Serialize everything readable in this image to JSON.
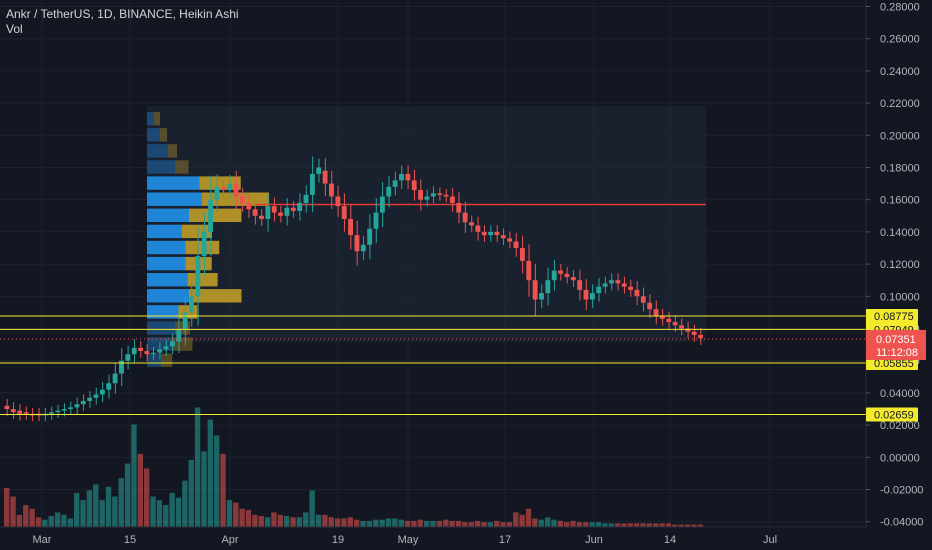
{
  "header": {
    "symbol_line": "Ankr / TetherUS, 1D, BINANCE, Heikin Ashi",
    "volume_label": "Vol"
  },
  "colors": {
    "background": "#131722",
    "grid": "#1e222d",
    "up": "#26a69a",
    "down": "#ef5350",
    "horizontal_line": "#f5eb2e",
    "resistance_line": "#e53935",
    "profile_blue": "#2196f3",
    "profile_yellow": "#c9a227",
    "price_badge": "#ef5350"
  },
  "chart_data": {
    "type": "candlestick",
    "title": "Ankr / TetherUS, 1D, BINANCE, Heikin Ashi",
    "y_axis": {
      "range": [
        -0.045,
        0.28
      ],
      "ticks": [
        "0.28000",
        "0.26000",
        "0.24000",
        "0.22000",
        "0.20000",
        "0.18000",
        "0.16000",
        "0.14000",
        "0.12000",
        "0.10000",
        "0.08000",
        "0.06000",
        "0.04000",
        "0.02000",
        "0.00000",
        "-0.02000",
        "-0.04000"
      ]
    },
    "x_axis": {
      "labels": [
        "Mar",
        "15",
        "Apr",
        "19",
        "May",
        "17",
        "Jun",
        "14",
        "Jul"
      ]
    },
    "candles": [
      [
        0.032,
        0.03
      ],
      [
        0.03,
        0.028
      ],
      [
        0.029,
        0.027
      ],
      [
        0.028,
        0.027
      ],
      [
        0.027,
        0.026
      ],
      [
        0.027,
        0.026
      ],
      [
        0.026,
        0.027
      ],
      [
        0.027,
        0.028
      ],
      [
        0.028,
        0.029
      ],
      [
        0.029,
        0.03
      ],
      [
        0.03,
        0.031
      ],
      [
        0.031,
        0.033
      ],
      [
        0.033,
        0.035
      ],
      [
        0.035,
        0.037
      ],
      [
        0.037,
        0.039
      ],
      [
        0.039,
        0.042
      ],
      [
        0.042,
        0.046
      ],
      [
        0.046,
        0.052
      ],
      [
        0.052,
        0.06
      ],
      [
        0.06,
        0.064
      ],
      [
        0.064,
        0.068
      ],
      [
        0.068,
        0.066
      ],
      [
        0.066,
        0.064
      ],
      [
        0.064,
        0.065
      ],
      [
        0.065,
        0.067
      ],
      [
        0.067,
        0.069
      ],
      [
        0.069,
        0.072
      ],
      [
        0.072,
        0.079
      ],
      [
        0.079,
        0.09
      ],
      [
        0.09,
        0.1
      ],
      [
        0.1,
        0.125
      ],
      [
        0.125,
        0.14
      ],
      [
        0.14,
        0.16
      ],
      [
        0.16,
        0.168
      ],
      [
        0.168,
        0.166
      ],
      [
        0.166,
        0.17
      ],
      [
        0.17,
        0.162
      ],
      [
        0.162,
        0.158
      ],
      [
        0.158,
        0.154
      ],
      [
        0.154,
        0.15
      ],
      [
        0.15,
        0.148
      ],
      [
        0.148,
        0.156
      ],
      [
        0.156,
        0.152
      ],
      [
        0.152,
        0.15
      ],
      [
        0.15,
        0.155
      ],
      [
        0.155,
        0.153
      ],
      [
        0.153,
        0.158
      ],
      [
        0.158,
        0.163
      ],
      [
        0.163,
        0.176
      ],
      [
        0.176,
        0.18
      ],
      [
        0.178,
        0.17
      ],
      [
        0.17,
        0.162
      ],
      [
        0.162,
        0.156
      ],
      [
        0.156,
        0.148
      ],
      [
        0.148,
        0.138
      ],
      [
        0.138,
        0.128
      ],
      [
        0.128,
        0.132
      ],
      [
        0.132,
        0.142
      ],
      [
        0.142,
        0.152
      ],
      [
        0.152,
        0.162
      ],
      [
        0.162,
        0.168
      ],
      [
        0.168,
        0.172
      ],
      [
        0.172,
        0.176
      ],
      [
        0.176,
        0.172
      ],
      [
        0.172,
        0.166
      ],
      [
        0.166,
        0.16
      ],
      [
        0.16,
        0.162
      ],
      [
        0.162,
        0.164
      ],
      [
        0.164,
        0.163
      ],
      [
        0.163,
        0.162
      ],
      [
        0.162,
        0.158
      ],
      [
        0.158,
        0.152
      ],
      [
        0.152,
        0.146
      ],
      [
        0.146,
        0.144
      ],
      [
        0.144,
        0.14
      ],
      [
        0.14,
        0.138
      ],
      [
        0.138,
        0.14
      ],
      [
        0.14,
        0.138
      ],
      [
        0.138,
        0.136
      ],
      [
        0.136,
        0.134
      ],
      [
        0.134,
        0.13
      ],
      [
        0.13,
        0.122
      ],
      [
        0.122,
        0.11
      ],
      [
        0.11,
        0.098
      ],
      [
        0.098,
        0.102
      ],
      [
        0.102,
        0.11
      ],
      [
        0.11,
        0.116
      ],
      [
        0.116,
        0.114
      ],
      [
        0.114,
        0.112
      ],
      [
        0.112,
        0.11
      ],
      [
        0.11,
        0.104
      ],
      [
        0.104,
        0.098
      ],
      [
        0.098,
        0.102
      ],
      [
        0.102,
        0.106
      ],
      [
        0.106,
        0.108
      ],
      [
        0.108,
        0.11
      ],
      [
        0.11,
        0.108
      ],
      [
        0.108,
        0.106
      ],
      [
        0.106,
        0.104
      ],
      [
        0.104,
        0.1
      ],
      [
        0.1,
        0.096
      ],
      [
        0.096,
        0.092
      ],
      [
        0.092,
        0.088
      ],
      [
        0.088,
        0.086
      ],
      [
        0.086,
        0.084
      ],
      [
        0.084,
        0.082
      ],
      [
        0.082,
        0.08
      ],
      [
        0.08,
        0.078
      ],
      [
        0.078,
        0.076
      ],
      [
        0.076,
        0.074
      ]
    ],
    "volume": [
      0.32,
      0.25,
      0.1,
      0.18,
      0.15,
      0.08,
      0.06,
      0.09,
      0.12,
      0.1,
      0.07,
      0.28,
      0.22,
      0.3,
      0.35,
      0.22,
      0.33,
      0.25,
      0.4,
      0.52,
      0.84,
      0.6,
      0.48,
      0.25,
      0.22,
      0.18,
      0.28,
      0.24,
      0.38,
      0.55,
      0.98,
      0.62,
      0.88,
      0.75,
      0.6,
      0.22,
      0.2,
      0.15,
      0.14,
      0.1,
      0.09,
      0.08,
      0.12,
      0.1,
      0.09,
      0.08,
      0.08,
      0.12,
      0.3,
      0.1,
      0.1,
      0.08,
      0.07,
      0.07,
      0.08,
      0.06,
      0.05,
      0.05,
      0.06,
      0.06,
      0.07,
      0.07,
      0.06,
      0.05,
      0.05,
      0.06,
      0.05,
      0.05,
      0.05,
      0.06,
      0.05,
      0.05,
      0.04,
      0.04,
      0.05,
      0.04,
      0.04,
      0.05,
      0.04,
      0.04,
      0.12,
      0.1,
      0.15,
      0.07,
      0.06,
      0.08,
      0.06,
      0.05,
      0.04,
      0.05,
      0.04,
      0.04,
      0.04,
      0.04,
      0.03,
      0.03,
      0.03,
      0.03,
      0.03,
      0.03,
      0.03,
      0.03,
      0.03,
      0.03,
      0.03,
      0.02,
      0.02,
      0.02,
      0.02,
      0.02
    ],
    "horizontal_levels": [
      {
        "value": 0.08775,
        "label": "0.08775"
      },
      {
        "value": 0.07949,
        "label": "0.07949"
      },
      {
        "value": 0.05855,
        "label": "0.05855"
      },
      {
        "value": 0.02659,
        "label": "0.02659"
      }
    ],
    "resistance_level": 0.157,
    "last_price": {
      "value": 0.07351,
      "label": "0.07351",
      "countdown": "11:12:08"
    },
    "dashed_price": {
      "value": 0.07375,
      "label": "0.07375"
    },
    "volume_profile": [
      {
        "price": 0.21,
        "up": 0.1,
        "down": 0.08
      },
      {
        "price": 0.2,
        "up": 0.18,
        "down": 0.1
      },
      {
        "price": 0.19,
        "up": 0.3,
        "down": 0.12
      },
      {
        "price": 0.18,
        "up": 0.4,
        "down": 0.18
      },
      {
        "price": 0.17,
        "up": 0.75,
        "down": 0.55
      },
      {
        "price": 0.16,
        "up": 0.78,
        "down": 0.9
      },
      {
        "price": 0.15,
        "up": 0.6,
        "down": 0.7
      },
      {
        "price": 0.14,
        "up": 0.5,
        "down": 0.4
      },
      {
        "price": 0.13,
        "up": 0.55,
        "down": 0.45
      },
      {
        "price": 0.12,
        "up": 0.55,
        "down": 0.35
      },
      {
        "price": 0.11,
        "up": 0.58,
        "down": 0.4
      },
      {
        "price": 0.1,
        "up": 0.6,
        "down": 0.7
      },
      {
        "price": 0.09,
        "up": 0.45,
        "down": 0.25
      },
      {
        "price": 0.08,
        "up": 0.4,
        "down": 0.2
      },
      {
        "price": 0.07,
        "up": 0.35,
        "down": 0.28
      },
      {
        "price": 0.06,
        "up": 0.2,
        "down": 0.15
      }
    ]
  }
}
